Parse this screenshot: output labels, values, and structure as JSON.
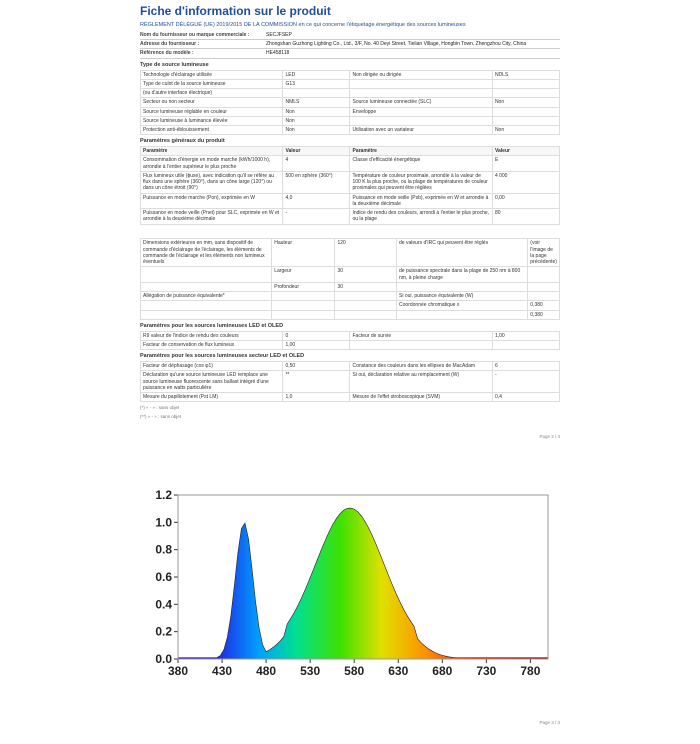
{
  "title": "Fiche d'information sur le produit",
  "subtitle": "RÈGLEMENT DÉLÉGUÉ (UE) 2019/2015 DE LA COMMISSION en ce qui concerne l'étiquetage énergétique des sources lumineuses",
  "hdr_rows": [
    {
      "lab": "Nom du fournisseur ou marque commerciale :",
      "val": "SECJFSEP"
    },
    {
      "lab": "Adresse du fournisseur :",
      "val": "Zhongshan Guzhong Lighting Co., Ltd., 3/F, No. 40 Deyi Street, Tielian Village, Hongbin Town, Zhengzhou City, China"
    },
    {
      "lab": "Référence du modèle :",
      "val": "HE458118"
    }
  ],
  "sec_a": "Type de source lumineuse",
  "tableA": [
    [
      "Technologie d'éclairage utilisée",
      "LED",
      "Non dirigée ou dirigée",
      "NDLS"
    ],
    [
      "Type de culot de la source lumineuse",
      "G13",
      "",
      ""
    ],
    [
      "(ou d'autre interface électrique)",
      "",
      "",
      ""
    ],
    [
      "Secteur ou non secteur",
      "NMLS",
      "Source lumineuse connectée (SLC)",
      "Non"
    ],
    [
      "Source lumineuse réglable en couleur",
      "Non",
      "Enveloppe",
      ""
    ],
    [
      "Source lumineuse à luminance élevée",
      "Non",
      "",
      ""
    ],
    [
      "Protection anti-éblouissement",
      "Non",
      "Utilisation avec un variateur",
      "Non"
    ]
  ],
  "sec_b": "Paramètres généraux du produit",
  "paramHdr": [
    "Paramètre",
    "Valeur",
    "Paramètre",
    "Valeur"
  ],
  "tableB": [
    [
      "Consommation d'énergie en mode marche (kWh/1000 h), arrondie à l'entier supérieur le plus proche",
      "4",
      "Classe d'efficacité énergétique",
      "E"
    ],
    [
      "Flux lumineux utile (ϕuse), avec indication qu'il se réfère au flux dans une sphère (360°), dans un cône large (120°) ou dans un cône étroit (90°)",
      "500 en sphère (360°)",
      "Température de couleur proximale, arrondie à la valeur de 100 K la plus proche, ou la plage de températures de couleur proximales qui peuvent être réglées",
      "4 000"
    ],
    [
      "Puissance en mode marche (Pon), exprimée en W",
      "4,0",
      "Puissance en mode veille (Psb), exprimée en W et arrondie à la deuxième décimale",
      "0,00"
    ],
    [
      "Puissance en mode veille (Pnet) pour SLC, exprimée en W et arrondie à la deuxième décimale",
      "-",
      "Indice de rendu des couleurs, arrondi à l'entier le plus proche, ou la plage",
      "80"
    ]
  ],
  "tableB2": [
    [
      "Dimensions extérieures en mm, sans dispositif de commande d'éclairage de l'éclairage, les éléments de commande de l'éclairage et les éléments non lumineux éventuels",
      "Hauteur",
      "120",
      "de valeurs d'IRC qui peuvent être réglés",
      "(voir l'image de la page précédente)"
    ],
    [
      "",
      "Largeur",
      "30",
      "de puissance spectrale dans la plage de 250 nm à 800 nm, à pleine charge",
      ""
    ],
    [
      "",
      "Profondeur",
      "30",
      "",
      ""
    ],
    [
      "Allégation de puissance équivalente*",
      "",
      "",
      "Si oui, puissance équivalente (W)",
      ""
    ],
    [
      "",
      "",
      "",
      "Coordonnée chromatique x",
      "0,380"
    ],
    [
      "",
      "",
      "",
      "",
      "0,380"
    ]
  ],
  "sec_c": "Paramètres pour les sources lumineuses LED et OLED",
  "tableC": [
    [
      "R9 valeur de l'indice de rendu des couleurs",
      "0",
      "Facteur de survie",
      "1,00"
    ],
    [
      "Facteur de conservation de flux lumineux",
      "1,00",
      "",
      ""
    ]
  ],
  "sec_d": "Paramètres pour les sources lumineuses secteur LED et OLED",
  "tableD": [
    [
      "Facteur de déphasage (cos φ1)",
      "0,50",
      "Constance des couleurs dans les ellipses de MacAdam",
      "6"
    ],
    [
      "Déclaration qu'une source lumineuse LED remplace une source lumineuse fluorescente sans ballast intégré d'une puissance en watts particulière",
      "**",
      "Si oui, déclaration relative au remplacement (W)",
      "-"
    ],
    [
      "Mesure du papillotement (Pst LM)",
      "1,0",
      "Mesure de l'effet stroboscopique (SVM)",
      "0,4"
    ]
  ],
  "footnotes": [
    "(*)  « - » : sans objet",
    "(**)  « - » : sans objet"
  ],
  "pagenums": [
    "Page 2 / 3",
    "Page 3 / 3"
  ],
  "chart": {
    "xmin": 380,
    "xmax": 800,
    "xticks": [
      380,
      430,
      480,
      530,
      580,
      630,
      680,
      730,
      780
    ],
    "ymin": 0,
    "ymax": 1.2,
    "yticks": [
      0.0,
      0.2,
      0.4,
      0.6,
      0.8,
      1.0,
      1.2
    ]
  }
}
